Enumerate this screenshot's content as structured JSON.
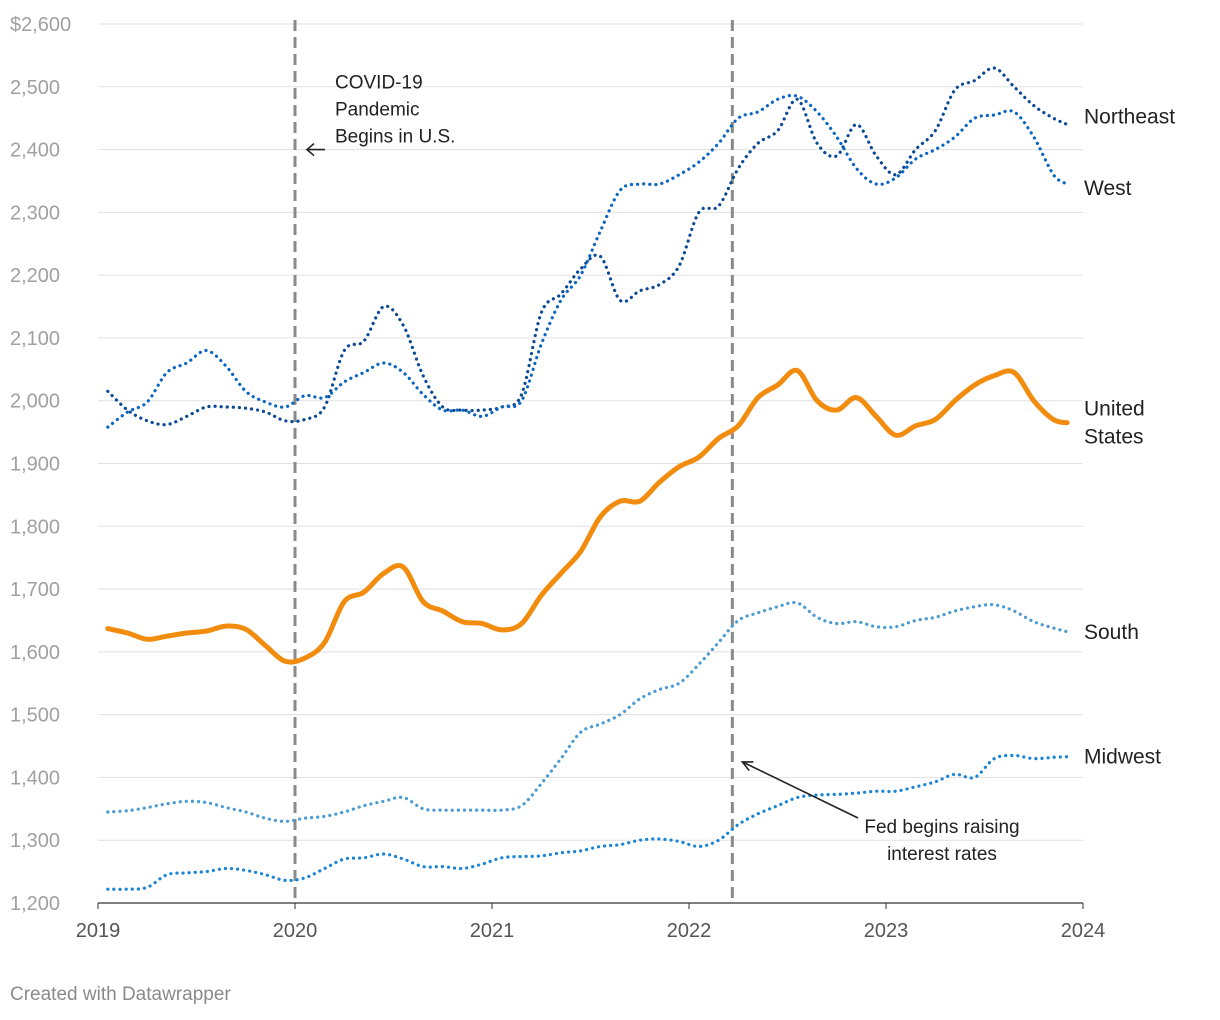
{
  "chart_data": {
    "type": "line",
    "title": "",
    "xlabel": "",
    "ylabel": "",
    "xlim": [
      2019,
      2024
    ],
    "ylim": [
      1200,
      2600
    ],
    "y_ticks": [
      1200,
      1300,
      1400,
      1500,
      1600,
      1700,
      1800,
      1900,
      2000,
      2100,
      2200,
      2300,
      2400,
      2500,
      2600
    ],
    "y_tick_labels": [
      "1,200",
      "1,300",
      "1,400",
      "1,500",
      "1,600",
      "1,700",
      "1,800",
      "1,900",
      "2,000",
      "2,100",
      "2,200",
      "2,300",
      "2,400",
      "2,500",
      "$2,600"
    ],
    "x_ticks": [
      2019,
      2020,
      2021,
      2022,
      2023,
      2024
    ],
    "x_tick_labels": [
      "2019",
      "2020",
      "2021",
      "2022",
      "2023",
      "2024"
    ],
    "grid": true,
    "series": [
      {
        "name": "Northeast",
        "label_lines": [
          "Northeast"
        ],
        "color": "#0b4a93",
        "style": "dotted",
        "x": [
          2019.05,
          2019.15,
          2019.25,
          2019.35,
          2019.45,
          2019.55,
          2019.65,
          2019.75,
          2019.85,
          2019.95,
          2020.05,
          2020.15,
          2020.25,
          2020.35,
          2020.45,
          2020.55,
          2020.65,
          2020.75,
          2020.85,
          2020.95,
          2021.05,
          2021.15,
          2021.25,
          2021.35,
          2021.45,
          2021.55,
          2021.65,
          2021.75,
          2021.85,
          2021.95,
          2022.05,
          2022.15,
          2022.25,
          2022.35,
          2022.45,
          2022.55,
          2022.65,
          2022.75,
          2022.85,
          2022.95,
          2023.05,
          2023.15,
          2023.25,
          2023.35,
          2023.45,
          2023.55,
          2023.65,
          2023.75,
          2023.85,
          2023.92
        ],
        "values": [
          2015,
          1985,
          1968,
          1962,
          1975,
          1990,
          1990,
          1988,
          1982,
          1968,
          1970,
          1990,
          2080,
          2095,
          2150,
          2120,
          2040,
          1990,
          1985,
          1985,
          1990,
          2010,
          2140,
          2170,
          2210,
          2230,
          2160,
          2175,
          2185,
          2215,
          2300,
          2310,
          2370,
          2410,
          2430,
          2480,
          2410,
          2390,
          2440,
          2390,
          2360,
          2400,
          2430,
          2495,
          2510,
          2530,
          2500,
          2470,
          2450,
          2440
        ]
      },
      {
        "name": "West",
        "label_lines": [
          "West"
        ],
        "color": "#0a66c2",
        "style": "dotted",
        "x": [
          2019.05,
          2019.15,
          2019.25,
          2019.35,
          2019.45,
          2019.55,
          2019.65,
          2019.75,
          2019.85,
          2019.95,
          2020.05,
          2020.15,
          2020.25,
          2020.35,
          2020.45,
          2020.55,
          2020.65,
          2020.75,
          2020.85,
          2020.95,
          2021.05,
          2021.15,
          2021.25,
          2021.35,
          2021.45,
          2021.55,
          2021.65,
          2021.75,
          2021.85,
          2021.95,
          2022.05,
          2022.15,
          2022.25,
          2022.35,
          2022.45,
          2022.55,
          2022.65,
          2022.75,
          2022.85,
          2022.95,
          2023.05,
          2023.15,
          2023.25,
          2023.35,
          2023.45,
          2023.55,
          2023.65,
          2023.75,
          2023.85,
          2023.92
        ],
        "values": [
          1958,
          1982,
          1998,
          2045,
          2060,
          2080,
          2055,
          2015,
          1998,
          1990,
          2008,
          2005,
          2030,
          2045,
          2060,
          2045,
          2010,
          1985,
          1985,
          1975,
          1990,
          2000,
          2090,
          2160,
          2200,
          2270,
          2335,
          2345,
          2345,
          2360,
          2380,
          2410,
          2450,
          2460,
          2480,
          2485,
          2460,
          2420,
          2370,
          2345,
          2355,
          2385,
          2400,
          2420,
          2450,
          2455,
          2460,
          2420,
          2360,
          2345
        ]
      },
      {
        "name": "United States",
        "label_lines": [
          "United",
          "States"
        ],
        "color": "#f28c0f",
        "style": "solid",
        "x": [
          2019.05,
          2019.15,
          2019.25,
          2019.35,
          2019.45,
          2019.55,
          2019.65,
          2019.75,
          2019.85,
          2019.95,
          2020.05,
          2020.15,
          2020.25,
          2020.35,
          2020.45,
          2020.55,
          2020.65,
          2020.75,
          2020.85,
          2020.95,
          2021.05,
          2021.15,
          2021.25,
          2021.35,
          2021.45,
          2021.55,
          2021.65,
          2021.75,
          2021.85,
          2021.95,
          2022.05,
          2022.15,
          2022.25,
          2022.35,
          2022.45,
          2022.55,
          2022.65,
          2022.75,
          2022.85,
          2022.95,
          2023.05,
          2023.15,
          2023.25,
          2023.35,
          2023.45,
          2023.55,
          2023.65,
          2023.75,
          2023.85,
          2023.92
        ],
        "values": [
          1637,
          1630,
          1620,
          1625,
          1630,
          1633,
          1641,
          1636,
          1610,
          1585,
          1590,
          1615,
          1680,
          1695,
          1725,
          1735,
          1680,
          1665,
          1648,
          1645,
          1635,
          1645,
          1690,
          1725,
          1760,
          1815,
          1840,
          1840,
          1870,
          1895,
          1910,
          1940,
          1960,
          2005,
          2025,
          2048,
          2000,
          1985,
          2005,
          1975,
          1945,
          1960,
          1970,
          2000,
          2025,
          2040,
          2045,
          2000,
          1970,
          1965
        ]
      },
      {
        "name": "South",
        "label_lines": [
          "South"
        ],
        "color": "#4a9bd1",
        "style": "dotted",
        "x": [
          2019.05,
          2019.15,
          2019.25,
          2019.35,
          2019.45,
          2019.55,
          2019.65,
          2019.75,
          2019.85,
          2019.95,
          2020.05,
          2020.15,
          2020.25,
          2020.35,
          2020.45,
          2020.55,
          2020.65,
          2020.75,
          2020.85,
          2020.95,
          2021.05,
          2021.15,
          2021.25,
          2021.35,
          2021.45,
          2021.55,
          2021.65,
          2021.75,
          2021.85,
          2021.95,
          2022.05,
          2022.15,
          2022.25,
          2022.35,
          2022.45,
          2022.55,
          2022.65,
          2022.75,
          2022.85,
          2022.95,
          2023.05,
          2023.15,
          2023.25,
          2023.35,
          2023.45,
          2023.55,
          2023.65,
          2023.75,
          2023.85,
          2023.92
        ],
        "values": [
          1345,
          1347,
          1352,
          1358,
          1362,
          1360,
          1352,
          1345,
          1335,
          1330,
          1335,
          1338,
          1345,
          1355,
          1362,
          1368,
          1350,
          1348,
          1348,
          1348,
          1348,
          1355,
          1390,
          1430,
          1472,
          1485,
          1500,
          1525,
          1540,
          1550,
          1580,
          1615,
          1650,
          1662,
          1672,
          1678,
          1655,
          1645,
          1648,
          1640,
          1640,
          1650,
          1655,
          1665,
          1672,
          1675,
          1665,
          1648,
          1638,
          1632
        ]
      },
      {
        "name": "Midwest",
        "label_lines": [
          "Midwest"
        ],
        "color": "#1a85d6",
        "style": "dotted",
        "x": [
          2019.05,
          2019.15,
          2019.25,
          2019.35,
          2019.45,
          2019.55,
          2019.65,
          2019.75,
          2019.85,
          2019.95,
          2020.05,
          2020.15,
          2020.25,
          2020.35,
          2020.45,
          2020.55,
          2020.65,
          2020.75,
          2020.85,
          2020.95,
          2021.05,
          2021.15,
          2021.25,
          2021.35,
          2021.45,
          2021.55,
          2021.65,
          2021.75,
          2021.85,
          2021.95,
          2022.05,
          2022.15,
          2022.25,
          2022.35,
          2022.45,
          2022.55,
          2022.65,
          2022.75,
          2022.85,
          2022.95,
          2023.05,
          2023.15,
          2023.25,
          2023.35,
          2023.45,
          2023.55,
          2023.65,
          2023.75,
          2023.85,
          2023.92
        ],
        "values": [
          1222,
          1222,
          1225,
          1245,
          1248,
          1250,
          1255,
          1252,
          1245,
          1236,
          1240,
          1255,
          1270,
          1272,
          1278,
          1270,
          1258,
          1258,
          1255,
          1262,
          1272,
          1274,
          1275,
          1280,
          1283,
          1290,
          1293,
          1300,
          1302,
          1298,
          1290,
          1300,
          1325,
          1342,
          1355,
          1368,
          1372,
          1373,
          1375,
          1378,
          1378,
          1385,
          1393,
          1405,
          1400,
          1430,
          1435,
          1430,
          1432,
          1433
        ]
      }
    ],
    "annotations": [
      {
        "lines": [
          "COVID-19",
          "Pandemic",
          "Begins in U.S."
        ],
        "x": 2020.0,
        "y": 2400
      },
      {
        "lines": [
          "Fed begins raising",
          "interest rates"
        ],
        "x": 2022.22,
        "y": 1420
      }
    ],
    "reference_lines": [
      2020.0,
      2022.22
    ]
  },
  "credit": "Created with Datawrapper"
}
